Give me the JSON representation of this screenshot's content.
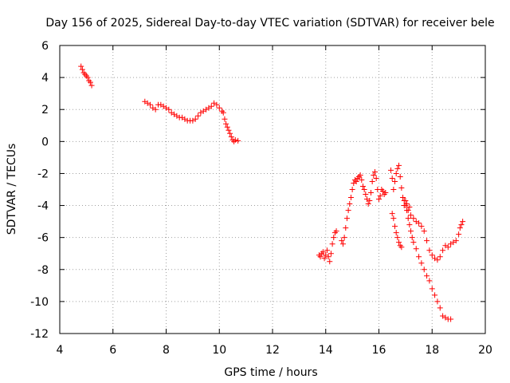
{
  "chart_data": {
    "type": "scatter",
    "title": "Day 156 of 2025, Sidereal Day-to-day VTEC variation (SDTVAR) for receiver bele",
    "xlabel": "GPS time / hours",
    "ylabel": "SDTVAR / TECUs",
    "xlim": [
      4,
      20
    ],
    "ylim": [
      -12,
      6
    ],
    "xticks": [
      4,
      6,
      8,
      10,
      12,
      14,
      16,
      18,
      20
    ],
    "yticks": [
      -12,
      -10,
      -8,
      -6,
      -4,
      -2,
      0,
      2,
      4,
      6
    ],
    "grid": true,
    "marker": "+",
    "color": "#ff0000",
    "series": [
      {
        "name": "SDTVAR",
        "points": [
          [
            4.8,
            4.7
          ],
          [
            4.85,
            4.5
          ],
          [
            4.9,
            4.3
          ],
          [
            4.95,
            4.2
          ],
          [
            5.0,
            4.1
          ],
          [
            5.05,
            4.0
          ],
          [
            5.1,
            3.8
          ],
          [
            5.15,
            3.7
          ],
          [
            5.2,
            3.5
          ],
          [
            7.2,
            2.5
          ],
          [
            7.3,
            2.4
          ],
          [
            7.4,
            2.3
          ],
          [
            7.5,
            2.1
          ],
          [
            7.6,
            2.0
          ],
          [
            7.7,
            2.3
          ],
          [
            7.8,
            2.3
          ],
          [
            7.9,
            2.2
          ],
          [
            8.0,
            2.1
          ],
          [
            8.1,
            2.0
          ],
          [
            8.2,
            1.8
          ],
          [
            8.3,
            1.7
          ],
          [
            8.4,
            1.6
          ],
          [
            8.5,
            1.5
          ],
          [
            8.6,
            1.5
          ],
          [
            8.7,
            1.4
          ],
          [
            8.8,
            1.3
          ],
          [
            8.9,
            1.3
          ],
          [
            9.0,
            1.3
          ],
          [
            9.1,
            1.4
          ],
          [
            9.2,
            1.6
          ],
          [
            9.3,
            1.8
          ],
          [
            9.4,
            1.9
          ],
          [
            9.5,
            2.0
          ],
          [
            9.6,
            2.1
          ],
          [
            9.7,
            2.2
          ],
          [
            9.8,
            2.4
          ],
          [
            9.9,
            2.3
          ],
          [
            10.0,
            2.1
          ],
          [
            10.1,
            1.9
          ],
          [
            10.15,
            1.8
          ],
          [
            10.2,
            1.4
          ],
          [
            10.25,
            1.1
          ],
          [
            10.3,
            0.9
          ],
          [
            10.35,
            0.7
          ],
          [
            10.4,
            0.5
          ],
          [
            10.45,
            0.3
          ],
          [
            10.5,
            0.1
          ],
          [
            10.55,
            0.0
          ],
          [
            10.6,
            0.1
          ],
          [
            10.7,
            0.05
          ],
          [
            13.75,
            -7.1
          ],
          [
            13.8,
            -7.2
          ],
          [
            13.85,
            -7.0
          ],
          [
            13.9,
            -6.9
          ],
          [
            13.95,
            -7.3
          ],
          [
            14.0,
            -7.1
          ],
          [
            14.05,
            -6.8
          ],
          [
            14.1,
            -7.2
          ],
          [
            14.15,
            -7.5
          ],
          [
            14.2,
            -7.0
          ],
          [
            14.25,
            -6.4
          ],
          [
            14.3,
            -6.0
          ],
          [
            14.35,
            -5.7
          ],
          [
            14.4,
            -5.6
          ],
          [
            14.6,
            -6.2
          ],
          [
            14.65,
            -6.4
          ],
          [
            14.7,
            -6.0
          ],
          [
            14.75,
            -5.4
          ],
          [
            14.8,
            -4.8
          ],
          [
            14.85,
            -4.3
          ],
          [
            14.9,
            -3.9
          ],
          [
            14.95,
            -3.5
          ],
          [
            15.0,
            -3.0
          ],
          [
            15.05,
            -2.6
          ],
          [
            15.1,
            -2.4
          ],
          [
            15.15,
            -2.5
          ],
          [
            15.2,
            -2.3
          ],
          [
            15.25,
            -2.2
          ],
          [
            15.3,
            -2.1
          ],
          [
            15.35,
            -2.4
          ],
          [
            15.4,
            -2.8
          ],
          [
            15.45,
            -3.0
          ],
          [
            15.5,
            -3.3
          ],
          [
            15.55,
            -3.6
          ],
          [
            15.6,
            -3.9
          ],
          [
            15.65,
            -3.7
          ],
          [
            15.7,
            -3.2
          ],
          [
            15.75,
            -2.5
          ],
          [
            15.8,
            -2.1
          ],
          [
            15.85,
            -1.9
          ],
          [
            15.9,
            -2.3
          ],
          [
            15.95,
            -3.0
          ],
          [
            16.0,
            -3.6
          ],
          [
            16.05,
            -3.4
          ],
          [
            16.1,
            -3.0
          ],
          [
            16.15,
            -3.1
          ],
          [
            16.2,
            -3.3
          ],
          [
            16.25,
            -3.2
          ],
          [
            16.45,
            -1.8
          ],
          [
            16.5,
            -2.3
          ],
          [
            16.55,
            -3.0
          ],
          [
            16.6,
            -2.5
          ],
          [
            16.65,
            -2.0
          ],
          [
            16.7,
            -1.7
          ],
          [
            16.75,
            -1.5
          ],
          [
            16.8,
            -2.2
          ],
          [
            16.85,
            -2.9
          ],
          [
            16.9,
            -3.5
          ],
          [
            16.95,
            -4.0
          ],
          [
            17.0,
            -3.7
          ],
          [
            17.05,
            -3.9
          ],
          [
            17.1,
            -4.3
          ],
          [
            17.15,
            -4.1
          ],
          [
            17.2,
            -4.6
          ],
          [
            17.3,
            -4.8
          ],
          [
            17.4,
            -5.0
          ],
          [
            17.5,
            -5.1
          ],
          [
            17.6,
            -5.3
          ],
          [
            17.7,
            -5.6
          ],
          [
            17.8,
            -6.2
          ],
          [
            17.9,
            -6.8
          ],
          [
            18.0,
            -7.1
          ],
          [
            18.1,
            -7.3
          ],
          [
            18.2,
            -7.4
          ],
          [
            18.3,
            -7.2
          ],
          [
            18.4,
            -6.8
          ],
          [
            18.5,
            -6.5
          ],
          [
            18.6,
            -6.6
          ],
          [
            18.7,
            -6.4
          ],
          [
            18.8,
            -6.3
          ],
          [
            18.9,
            -6.2
          ],
          [
            19.0,
            -5.8
          ],
          [
            19.05,
            -5.4
          ],
          [
            19.1,
            -5.2
          ],
          [
            19.15,
            -5.0
          ],
          [
            16.5,
            -4.5
          ],
          [
            16.55,
            -4.8
          ],
          [
            16.6,
            -5.3
          ],
          [
            16.65,
            -5.7
          ],
          [
            16.7,
            -6.0
          ],
          [
            16.75,
            -6.3
          ],
          [
            16.8,
            -6.5
          ],
          [
            16.85,
            -6.6
          ],
          [
            16.95,
            -3.7
          ],
          [
            17.0,
            -4.0
          ],
          [
            17.05,
            -4.3
          ],
          [
            17.1,
            -4.8
          ],
          [
            17.15,
            -5.2
          ],
          [
            17.2,
            -5.6
          ],
          [
            17.25,
            -6.0
          ],
          [
            17.3,
            -6.3
          ],
          [
            17.4,
            -6.7
          ],
          [
            17.5,
            -7.2
          ],
          [
            17.6,
            -7.6
          ],
          [
            17.7,
            -8.0
          ],
          [
            17.8,
            -8.4
          ],
          [
            17.9,
            -8.7
          ],
          [
            18.0,
            -9.2
          ],
          [
            18.1,
            -9.6
          ],
          [
            18.2,
            -10.0
          ],
          [
            18.3,
            -10.4
          ],
          [
            18.4,
            -10.9
          ],
          [
            18.5,
            -11.0
          ],
          [
            18.6,
            -11.1
          ],
          [
            18.7,
            -11.1
          ]
        ]
      }
    ]
  }
}
